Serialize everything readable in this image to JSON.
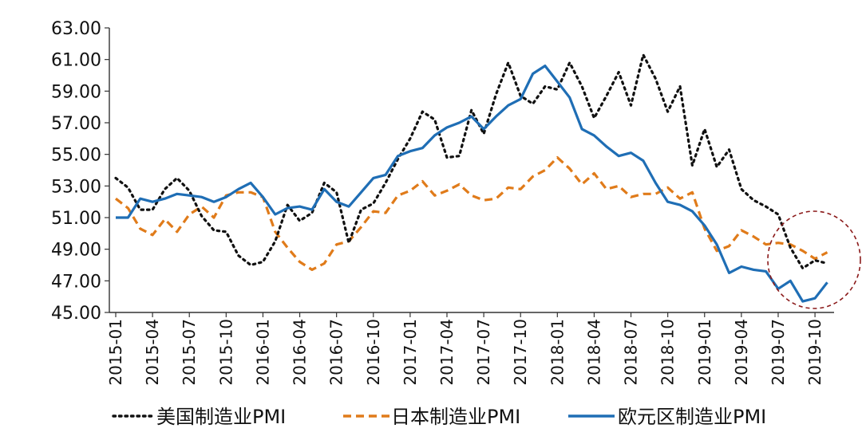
{
  "chart_data": {
    "type": "line",
    "title": "",
    "xlabel": "",
    "ylabel": "",
    "ylim": [
      45,
      63
    ],
    "y_ticks": [
      "63.00",
      "61.00",
      "59.00",
      "57.00",
      "55.00",
      "53.00",
      "51.00",
      "49.00",
      "47.00",
      "45.00"
    ],
    "x_tick_labels": [
      "2015-01",
      "2015-04",
      "2015-07",
      "2015-10",
      "2016-01",
      "2016-04",
      "2016-07",
      "2016-10",
      "2017-01",
      "2017-04",
      "2017-07",
      "2017-10",
      "2018-01",
      "2018-04",
      "2018-07",
      "2018-10",
      "2019-01",
      "2019-04",
      "2019-07",
      "2019-10"
    ],
    "grid": false,
    "legend_position": "bottom",
    "x": [
      "2015-01",
      "2015-02",
      "2015-03",
      "2015-04",
      "2015-05",
      "2015-06",
      "2015-07",
      "2015-08",
      "2015-09",
      "2015-10",
      "2015-11",
      "2015-12",
      "2016-01",
      "2016-02",
      "2016-03",
      "2016-04",
      "2016-05",
      "2016-06",
      "2016-07",
      "2016-08",
      "2016-09",
      "2016-10",
      "2016-11",
      "2016-12",
      "2017-01",
      "2017-02",
      "2017-03",
      "2017-04",
      "2017-05",
      "2017-06",
      "2017-07",
      "2017-08",
      "2017-09",
      "2017-10",
      "2017-11",
      "2017-12",
      "2018-01",
      "2018-02",
      "2018-03",
      "2018-04",
      "2018-05",
      "2018-06",
      "2018-07",
      "2018-08",
      "2018-09",
      "2018-10",
      "2018-11",
      "2018-12",
      "2019-01",
      "2019-02",
      "2019-03",
      "2019-04",
      "2019-05",
      "2019-06",
      "2019-07",
      "2019-08",
      "2019-09",
      "2019-10",
      "2019-11"
    ],
    "series": [
      {
        "name": "美国制造业PMI",
        "color": "#111111",
        "style": "dotted",
        "values": [
          53.5,
          52.9,
          51.5,
          51.5,
          52.8,
          53.5,
          52.7,
          51.1,
          50.2,
          50.1,
          48.6,
          48.0,
          48.2,
          49.5,
          51.8,
          50.8,
          51.3,
          53.2,
          52.6,
          49.4,
          51.5,
          51.9,
          53.2,
          54.7,
          56.0,
          57.7,
          57.2,
          54.8,
          54.9,
          57.8,
          56.3,
          58.8,
          60.8,
          58.7,
          58.2,
          59.3,
          59.1,
          60.8,
          59.3,
          57.3,
          58.7,
          60.2,
          58.1,
          61.3,
          59.8,
          57.7,
          59.3,
          54.3,
          56.6,
          54.2,
          55.3,
          52.8,
          52.1,
          51.7,
          51.2,
          49.1,
          47.8,
          48.3,
          48.1
        ]
      },
      {
        "name": "日本制造业PMI",
        "color": "#E07B1A",
        "style": "dashed",
        "values": [
          52.2,
          51.6,
          50.3,
          49.9,
          50.9,
          50.1,
          51.2,
          51.7,
          51.0,
          52.4,
          52.6,
          52.6,
          52.3,
          50.1,
          49.1,
          48.2,
          47.7,
          48.1,
          49.3,
          49.5,
          50.4,
          51.4,
          51.3,
          52.4,
          52.7,
          53.3,
          52.4,
          52.7,
          53.1,
          52.4,
          52.1,
          52.2,
          52.9,
          52.8,
          53.6,
          54.0,
          54.8,
          54.1,
          53.1,
          53.8,
          52.8,
          53.0,
          52.3,
          52.5,
          52.5,
          52.9,
          52.2,
          52.6,
          50.3,
          48.9,
          49.2,
          50.2,
          49.8,
          49.3,
          49.4,
          49.3,
          48.9,
          48.4,
          48.8
        ]
      },
      {
        "name": "欧元区制造业PMI",
        "color": "#1F6EB5",
        "style": "solid",
        "values": [
          51.0,
          51.0,
          52.2,
          52.0,
          52.2,
          52.5,
          52.4,
          52.3,
          52.0,
          52.3,
          52.8,
          53.2,
          52.3,
          51.2,
          51.6,
          51.7,
          51.5,
          52.8,
          52.0,
          51.7,
          52.6,
          53.5,
          53.7,
          54.9,
          55.2,
          55.4,
          56.2,
          56.7,
          57.0,
          57.4,
          56.6,
          57.4,
          58.1,
          58.5,
          60.1,
          60.6,
          59.6,
          58.6,
          56.6,
          56.2,
          55.5,
          54.9,
          55.1,
          54.6,
          53.2,
          52.0,
          51.8,
          51.4,
          50.5,
          49.3,
          47.5,
          47.9,
          47.7,
          47.6,
          46.5,
          47.0,
          45.7,
          45.9,
          46.9
        ]
      }
    ]
  }
}
